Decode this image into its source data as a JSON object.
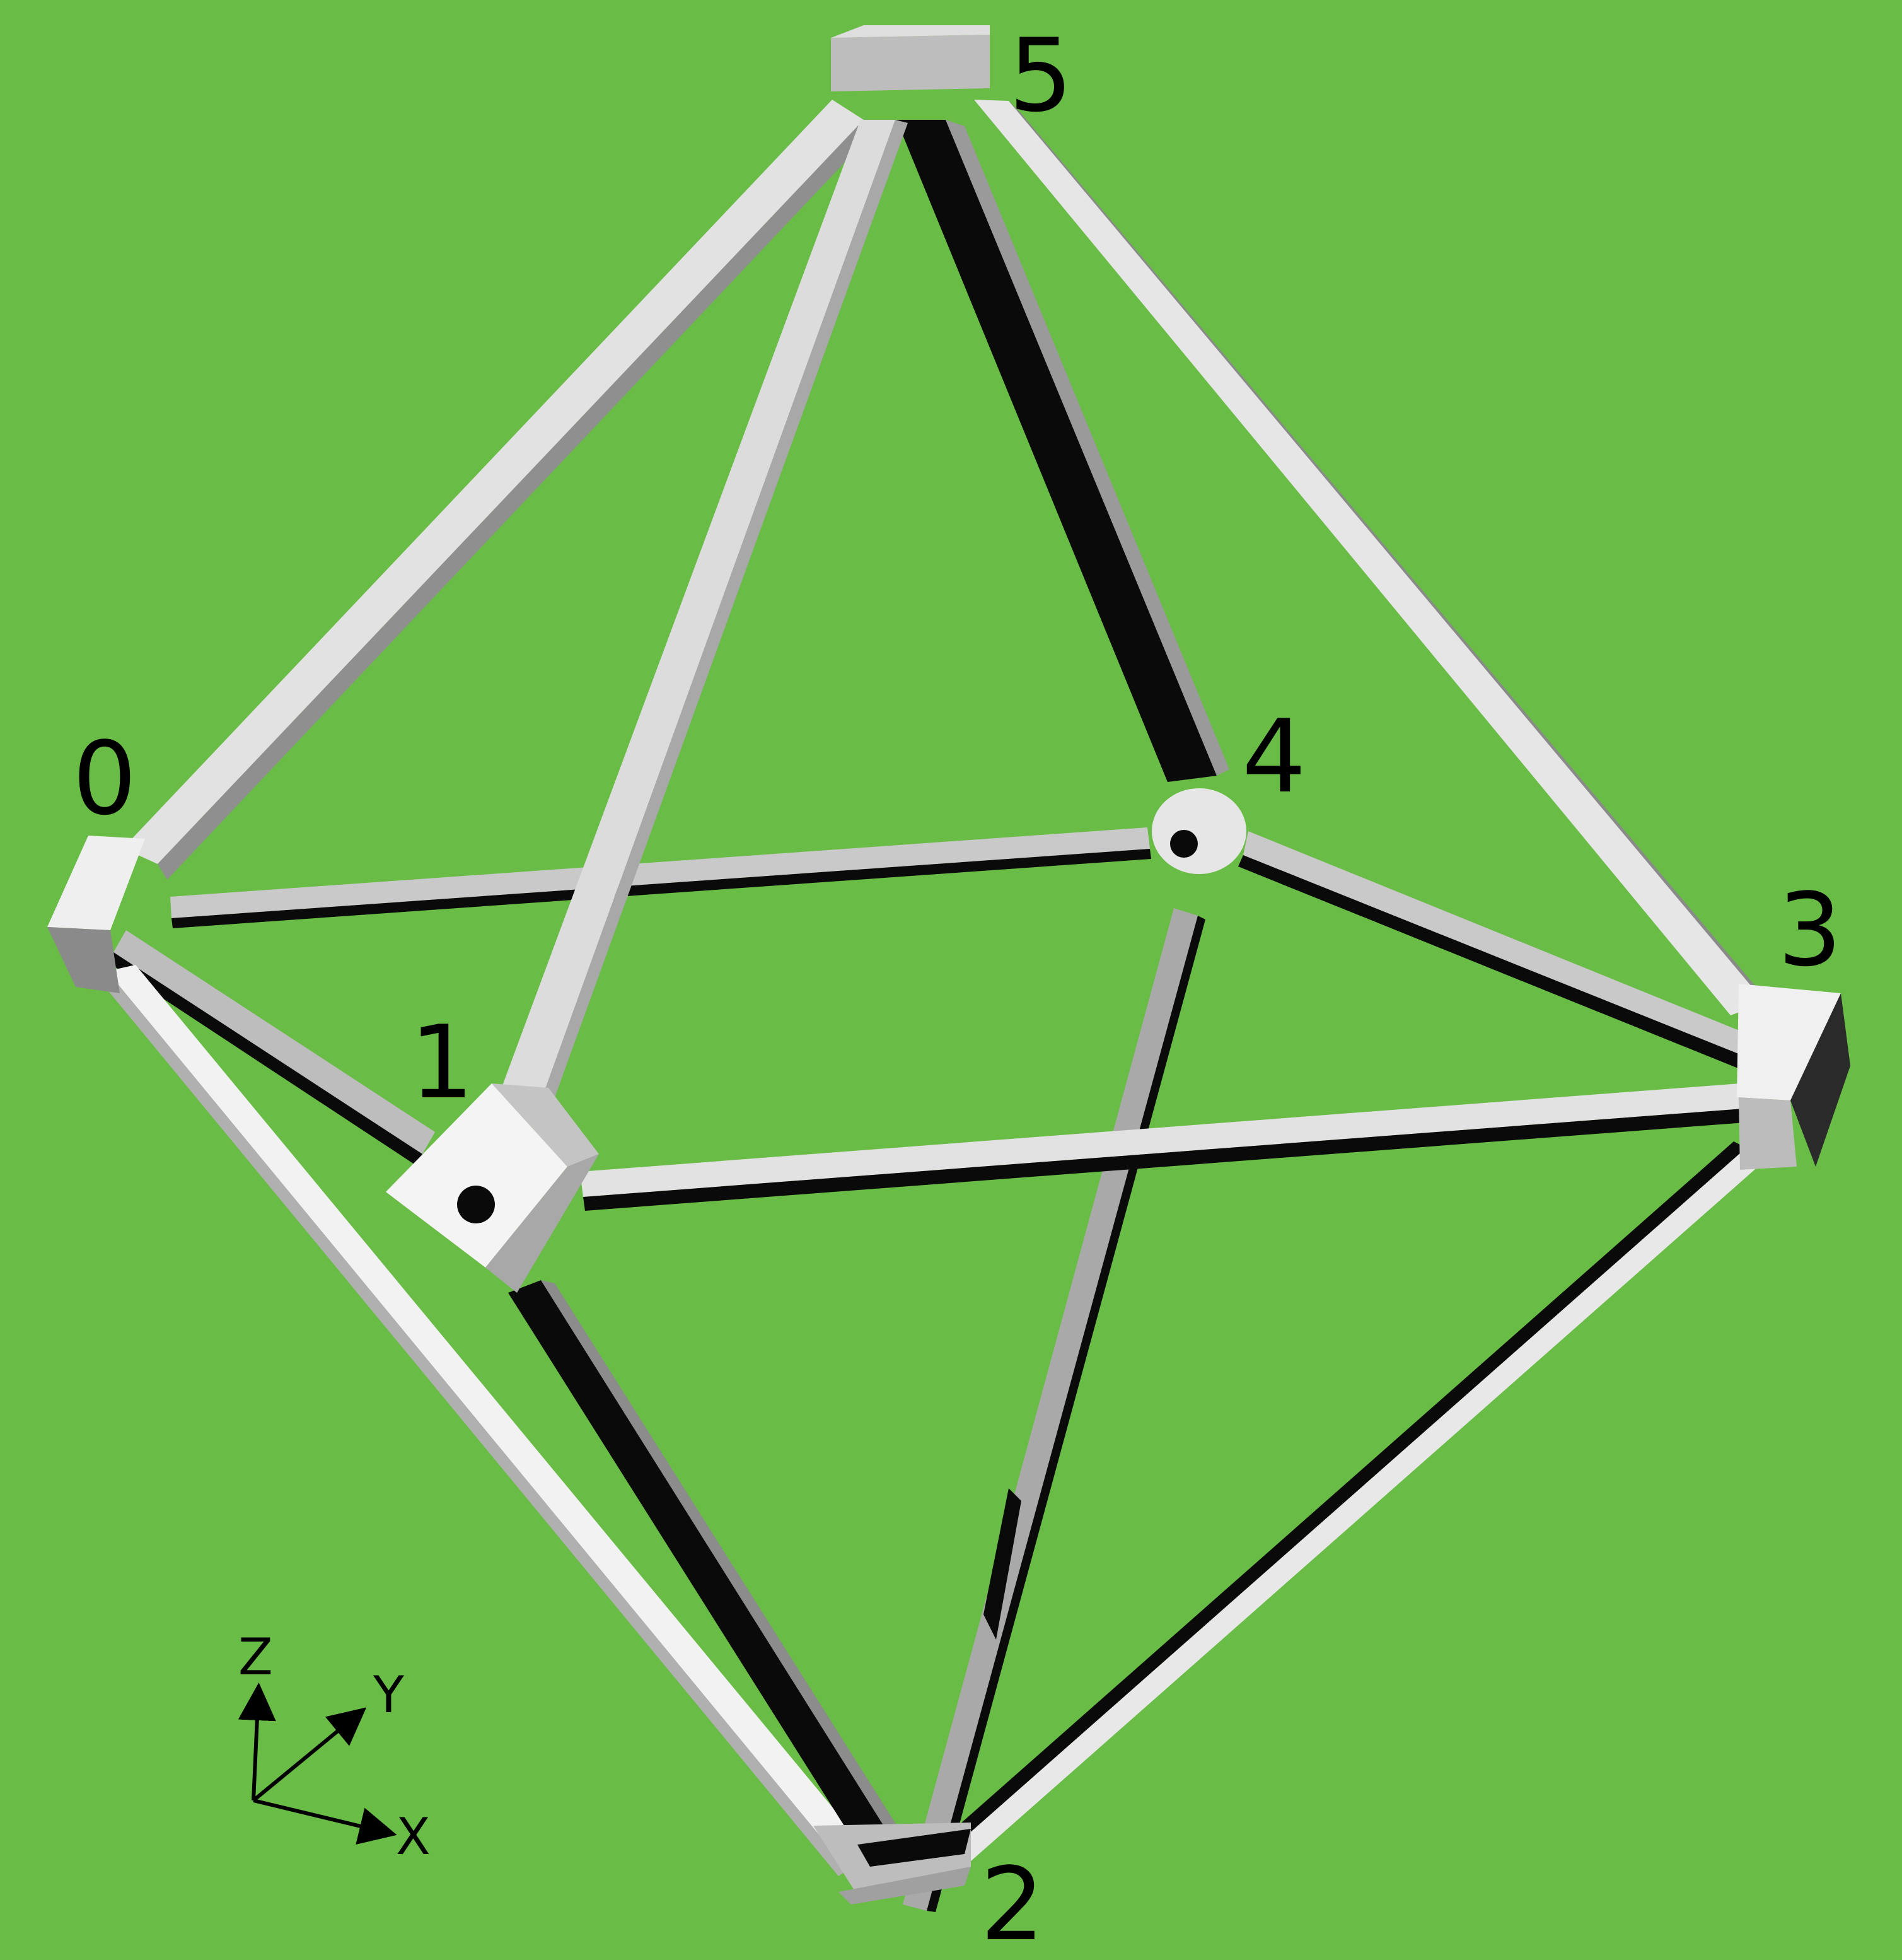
{
  "colors": {
    "background": "#69bc45",
    "strut_light": "#e4e4e4",
    "strut_mid": "#b4b4b4",
    "strut_dark": "#0a0a0a",
    "node_light": "#efefef",
    "node_shade": "#bdbdbd",
    "node_dark": "#6a6a6a",
    "text": "#000000"
  },
  "vertices": [
    {
      "id": "0",
      "label": "0"
    },
    {
      "id": "1",
      "label": "1"
    },
    {
      "id": "2",
      "label": "2"
    },
    {
      "id": "3",
      "label": "3"
    },
    {
      "id": "4",
      "label": "4"
    },
    {
      "id": "5",
      "label": "5"
    }
  ],
  "edges": [
    [
      "0",
      "1"
    ],
    [
      "0",
      "2"
    ],
    [
      "0",
      "4"
    ],
    [
      "0",
      "5"
    ],
    [
      "1",
      "2"
    ],
    [
      "1",
      "3"
    ],
    [
      "1",
      "5"
    ],
    [
      "2",
      "3"
    ],
    [
      "2",
      "4"
    ],
    [
      "3",
      "4"
    ],
    [
      "3",
      "5"
    ],
    [
      "4",
      "5"
    ]
  ],
  "axes": {
    "z_label": "Z",
    "y_label": "Y",
    "x_label": "X"
  }
}
